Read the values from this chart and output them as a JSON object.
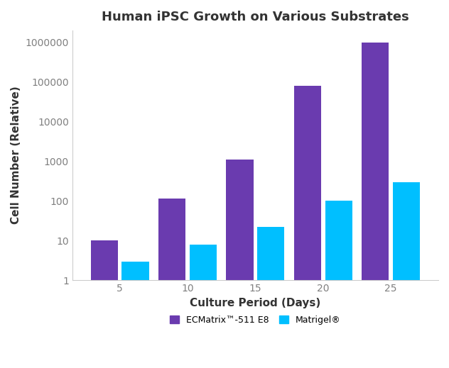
{
  "title": "Human iPSC Growth on Various Substrates",
  "xlabel": "Culture Period (Days)",
  "ylabel": "Cell Number (Relative)",
  "days": [
    5,
    10,
    15,
    20,
    25
  ],
  "ecmatrix_values": [
    10,
    115,
    1100,
    80000,
    1000000
  ],
  "matrigel_values": [
    3,
    8,
    22,
    100,
    300
  ],
  "ecmatrix_color": "#6A3BAF",
  "matrigel_color": "#00BFFF",
  "ylim_bottom": 1,
  "ylim_top": 2000000,
  "bar_width": 2.0,
  "bar_gap": 0.3,
  "xlim_left": 1.5,
  "xlim_right": 28.5,
  "legend_labels": [
    "ECMatrix™-511 E8",
    "Matrigel®"
  ],
  "yticks": [
    1,
    10,
    100,
    1000,
    10000,
    100000,
    1000000
  ],
  "ytick_labels": [
    "1",
    "10",
    "100",
    "1000",
    "10000",
    "100000",
    "1000000"
  ],
  "background_color": "#ffffff",
  "title_fontsize": 13,
  "axis_label_fontsize": 11,
  "tick_fontsize": 10,
  "tick_color": "#808080",
  "label_color": "#333333",
  "spine_color": "#cccccc"
}
